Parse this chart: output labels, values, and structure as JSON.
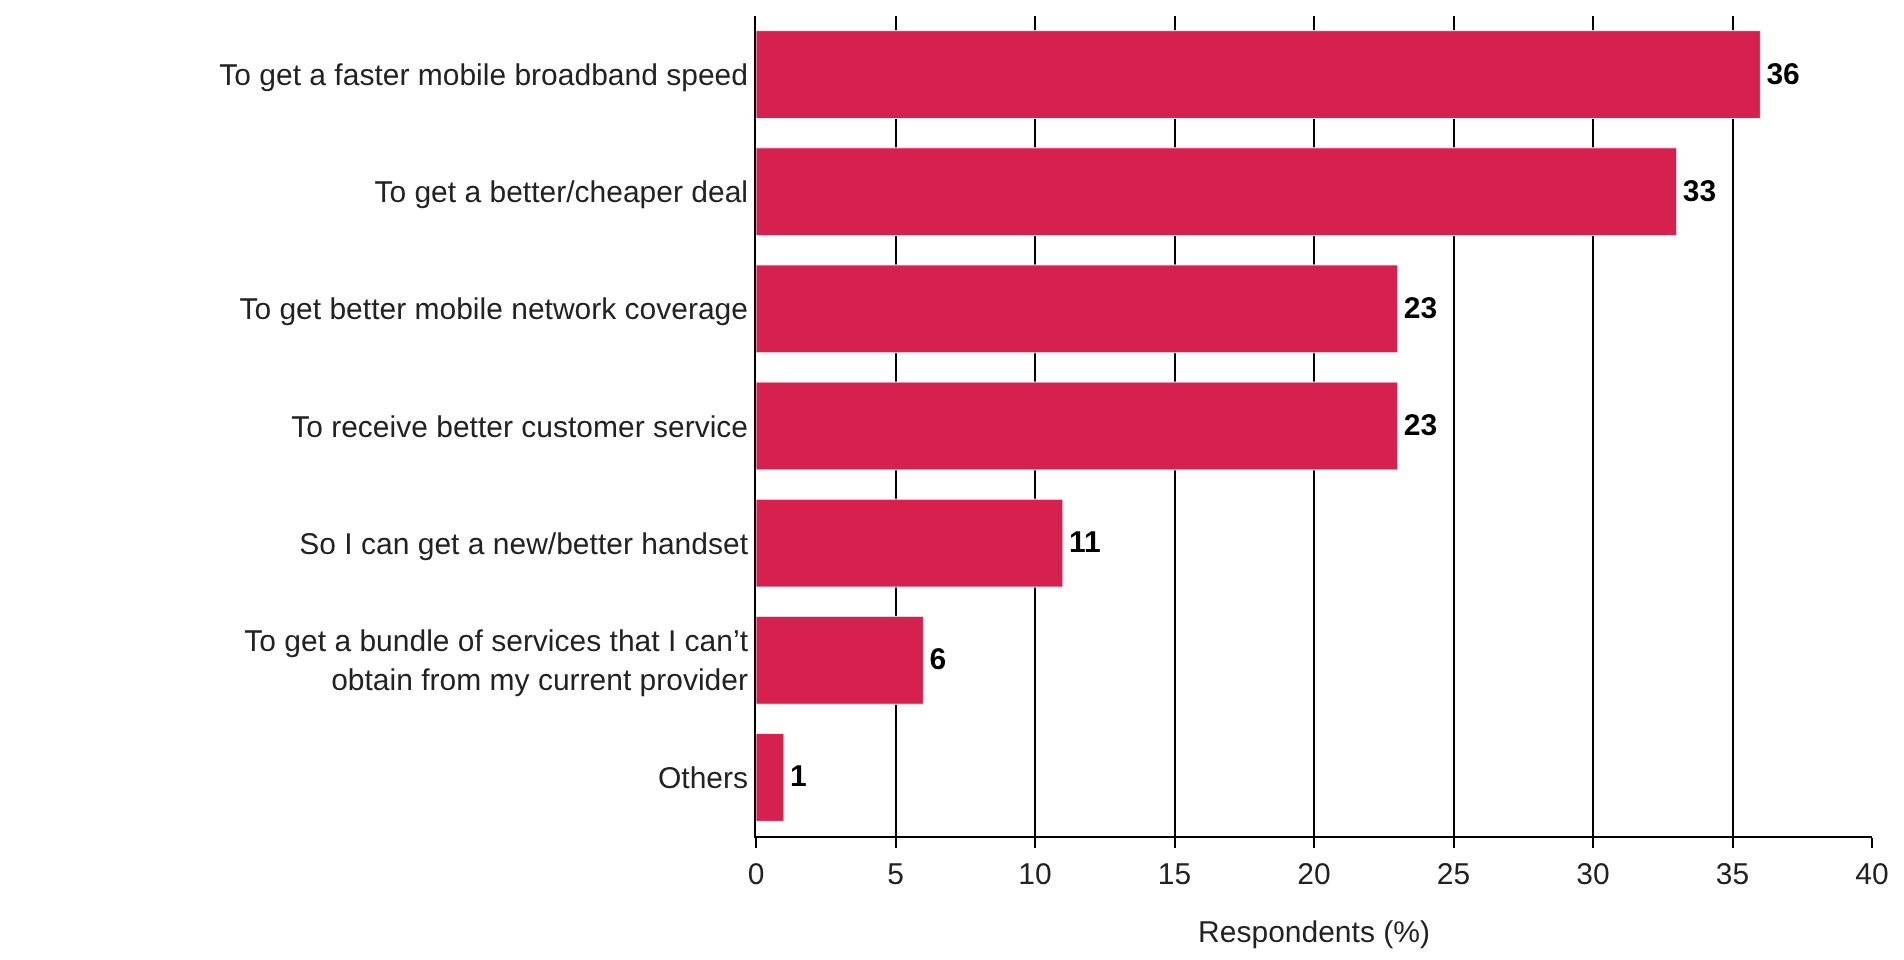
{
  "chart_data": {
    "type": "bar",
    "orientation": "horizontal",
    "xlabel": "Respondents (%)",
    "categories": [
      "To get a faster mobile broadband speed",
      "To get a better/cheaper deal",
      "To get better mobile network coverage",
      "To receive better customer service",
      "So I can get a new/better handset",
      "To get a bundle of services that I can’t\nobtain from my current provider",
      "Others"
    ],
    "values": [
      36,
      33,
      23,
      23,
      11,
      6,
      1
    ],
    "color": "#d6204e",
    "xlim": [
      0,
      40
    ],
    "xticks": [
      0,
      5,
      10,
      15,
      20,
      25,
      30,
      35,
      40
    ],
    "grid": "x",
    "data_labels": true
  }
}
